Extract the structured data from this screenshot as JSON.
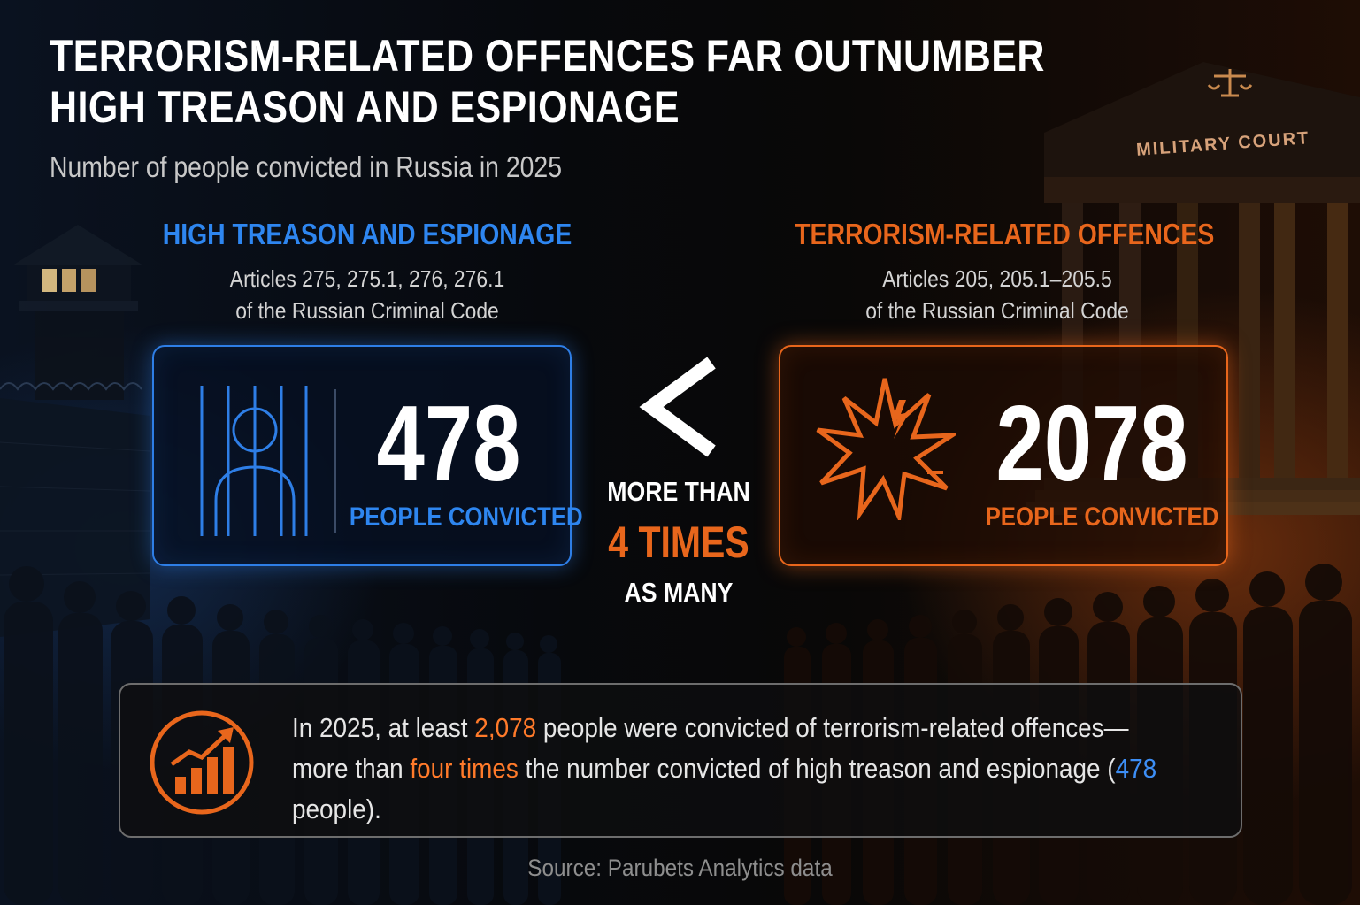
{
  "header": {
    "title_line1": "TERRORISM-RELATED OFFENCES FAR OUTNUMBER",
    "title_line2": "HIGH TREASON AND ESPIONAGE",
    "subtitle": "Number of people convicted in Russia in 2025"
  },
  "left": {
    "heading": "HIGH TREASON AND ESPIONAGE",
    "articles_line1": "Articles 275, 275.1, 276, 276.1",
    "articles_line2": "of the Russian Criminal Code",
    "value": "478",
    "value_label": "PEOPLE CONVICTED",
    "icon": "prisoner-behind-bars-icon",
    "color": "#2e7ee6"
  },
  "right": {
    "heading": "TERRORISM-RELATED OFFENCES",
    "articles_line1": "Articles 205, 205.1–205.5",
    "articles_line2": "of the Russian Criminal Code",
    "value": "2078",
    "value_label": "PEOPLE CONVICTED",
    "icon": "explosion-icon",
    "color": "#e8661c"
  },
  "comparison": {
    "symbol": "<",
    "line1": "MORE THAN",
    "line2": "4 TIMES",
    "line3": "AS MANY"
  },
  "summary": {
    "icon": "rising-bar-chart-icon",
    "part1": "In 2025, at least ",
    "hl1": "2,078",
    "part2": " people were convicted of terrorism-related offences—more than ",
    "hl2": "four times",
    "part3": " the number convicted of high treason and espionage (",
    "hl3": "478",
    "part4": " people)."
  },
  "background": {
    "court_sign": "MILITARY COURT"
  },
  "source": "Source: Parubets Analytics data"
}
